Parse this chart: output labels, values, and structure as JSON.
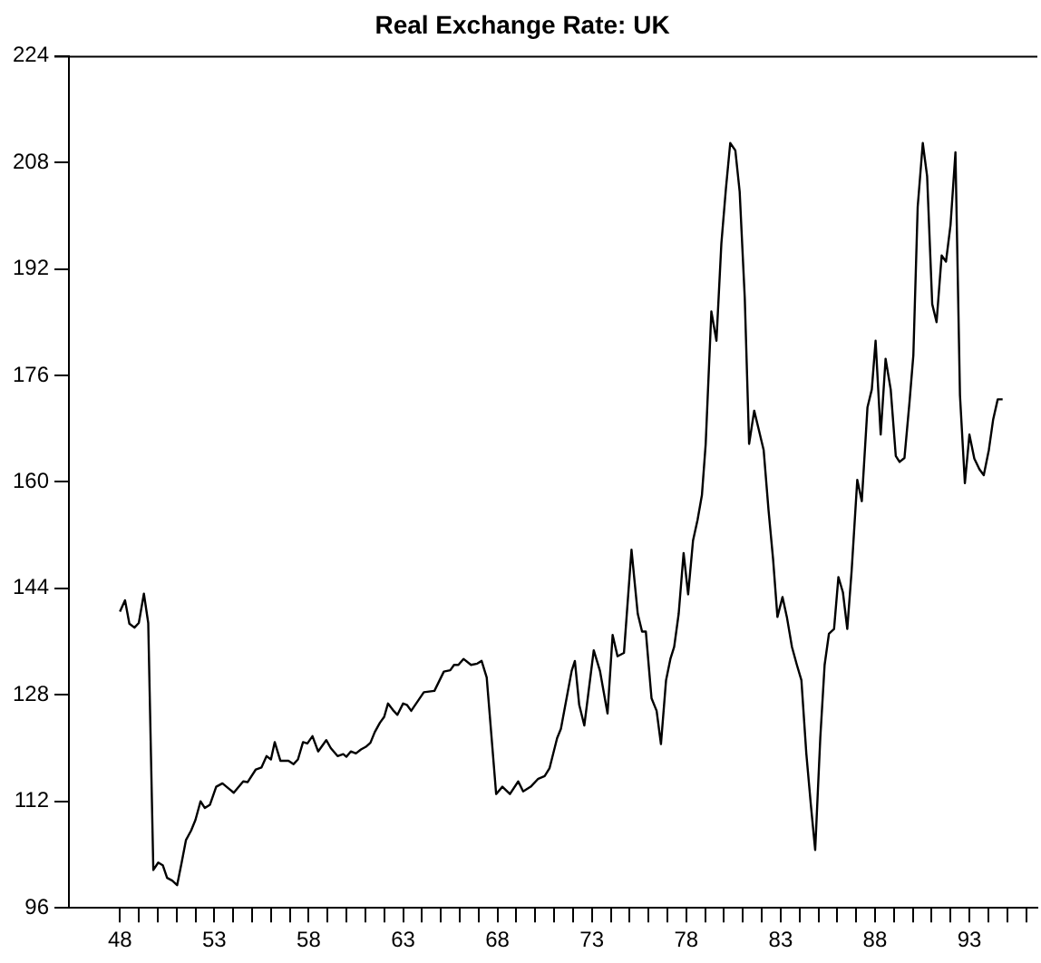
{
  "chart_data": {
    "type": "line",
    "title": "Real Exchange Rate: UK",
    "color": "#000000",
    "marker": "none",
    "grid": false,
    "legend": false,
    "x": [
      48.0,
      48.27,
      48.5,
      48.77,
      49.0,
      49.27,
      49.5,
      49.77,
      50.03,
      50.27,
      50.5,
      50.77,
      51.03,
      51.27,
      51.5,
      51.77,
      52.0,
      52.27,
      52.5,
      52.77,
      53.1,
      53.43,
      54.03,
      54.53,
      54.77,
      55.2,
      55.5,
      55.77,
      56.0,
      56.2,
      56.5,
      56.93,
      57.2,
      57.43,
      57.7,
      57.93,
      58.2,
      58.5,
      58.93,
      59.17,
      59.53,
      59.83,
      60.0,
      60.23,
      60.5,
      60.77,
      61.03,
      61.27,
      61.5,
      61.77,
      62.0,
      62.2,
      62.5,
      62.7,
      63.0,
      63.2,
      63.43,
      64.1,
      64.66,
      65.16,
      65.5,
      65.7,
      65.93,
      66.2,
      66.6,
      66.93,
      67.16,
      67.43,
      67.93,
      68.26,
      68.66,
      69.1,
      69.36,
      69.76,
      70.16,
      70.5,
      70.76,
      71.16,
      71.36,
      71.93,
      72.1,
      72.33,
      72.6,
      73.1,
      73.43,
      73.83,
      74.1,
      74.36,
      74.7,
      75.1,
      75.43,
      75.66,
      75.86,
      76.16,
      76.43,
      76.66,
      76.93,
      77.16,
      77.36,
      77.6,
      77.86,
      78.1,
      78.36,
      78.6,
      78.83,
      79.03,
      79.33,
      79.6,
      79.86,
      80.1,
      80.33,
      80.6,
      80.83,
      81.1,
      81.33,
      81.6,
      81.83,
      82.1,
      82.36,
      82.6,
      82.83,
      83.1,
      83.33,
      83.6,
      83.86,
      84.1,
      84.36,
      84.6,
      84.83,
      85.1,
      85.33,
      85.56,
      85.83,
      86.06,
      86.3,
      86.53,
      86.76,
      87.06,
      87.3,
      87.6,
      87.83,
      88.03,
      88.3,
      88.56,
      88.83,
      89.1,
      89.3,
      89.56,
      89.83,
      90.03,
      90.26,
      90.53,
      90.76,
      91.03,
      91.26,
      91.53,
      91.76,
      92.0,
      92.26,
      92.5,
      92.76,
      93.0,
      93.26,
      93.53,
      93.76,
      94.03,
      94.26,
      94.5,
      94.76
    ],
    "values": [
      140.5,
      142.2,
      138.7,
      138.1,
      138.8,
      143.2,
      138.8,
      101.7,
      102.8,
      102.4,
      100.5,
      100.1,
      99.4,
      102.8,
      106.2,
      107.6,
      109.2,
      112.0,
      111.0,
      111.5,
      114.2,
      114.7,
      113.3,
      115.0,
      114.9,
      116.8,
      117.1,
      118.8,
      118.3,
      120.9,
      118.1,
      118.1,
      117.6,
      118.3,
      120.9,
      120.7,
      121.8,
      119.5,
      121.2,
      120.0,
      118.8,
      119.1,
      118.7,
      119.5,
      119.2,
      119.8,
      120.2,
      120.8,
      122.4,
      123.8,
      124.7,
      126.7,
      125.6,
      125.0,
      126.7,
      126.5,
      125.6,
      128.4,
      128.6,
      131.5,
      131.7,
      132.5,
      132.5,
      133.4,
      132.5,
      132.7,
      133.1,
      130.6,
      113.1,
      114.2,
      113.1,
      115.0,
      113.5,
      114.2,
      115.4,
      115.8,
      117.0,
      121.5,
      122.9,
      131.6,
      133.1,
      126.5,
      123.4,
      134.7,
      131.6,
      125.2,
      137.0,
      133.8,
      134.3,
      149.8,
      140.2,
      137.5,
      137.5,
      127.5,
      125.6,
      120.6,
      130.2,
      133.4,
      135.2,
      140.2,
      149.3,
      143.1,
      151.2,
      154.3,
      158.0,
      165.7,
      185.6,
      181.2,
      195.8,
      204.0,
      210.9,
      209.8,
      203.6,
      187.6,
      165.7,
      170.7,
      168.0,
      164.8,
      155.7,
      148.4,
      139.7,
      142.7,
      139.7,
      135.2,
      132.5,
      130.2,
      119.2,
      111.5,
      104.7,
      121.5,
      132.5,
      137.2,
      137.9,
      145.7,
      143.4,
      137.9,
      146.6,
      160.3,
      157.1,
      171.2,
      173.9,
      181.2,
      167.1,
      178.5,
      173.9,
      163.9,
      163.0,
      163.6,
      172.1,
      179.0,
      201.3,
      210.9,
      205.9,
      186.7,
      184.0,
      194.0,
      193.1,
      198.6,
      209.5,
      173.0,
      159.8,
      167.1,
      163.5,
      161.9,
      161.0,
      164.8,
      169.4,
      172.4,
      172.4
    ],
    "xlim": [
      45.3,
      96.6
    ],
    "xticks": [
      48,
      {
        "value": 49,
        "label": null
      },
      {
        "value": 50,
        "label": null
      },
      {
        "value": 51,
        "label": null
      },
      {
        "value": 52,
        "label": null
      },
      53,
      {
        "value": 54,
        "label": null
      },
      {
        "value": 55,
        "label": null
      },
      {
        "value": 56,
        "label": null
      },
      {
        "value": 57,
        "label": null
      },
      58,
      {
        "value": 59,
        "label": null
      },
      {
        "value": 60,
        "label": null
      },
      {
        "value": 61,
        "label": null
      },
      {
        "value": 62,
        "label": null
      },
      63,
      {
        "value": 64,
        "label": null
      },
      {
        "value": 65,
        "label": null
      },
      {
        "value": 66,
        "label": null
      },
      {
        "value": 67,
        "label": null
      },
      68,
      {
        "value": 69,
        "label": null
      },
      {
        "value": 70,
        "label": null
      },
      {
        "value": 71,
        "label": null
      },
      {
        "value": 72,
        "label": null
      },
      73,
      {
        "value": 74,
        "label": null
      },
      {
        "value": 75,
        "label": null
      },
      {
        "value": 76,
        "label": null
      },
      {
        "value": 77,
        "label": null
      },
      78,
      {
        "value": 79,
        "label": null
      },
      {
        "value": 80,
        "label": null
      },
      {
        "value": 81,
        "label": null
      },
      {
        "value": 82,
        "label": null
      },
      83,
      {
        "value": 84,
        "label": null
      },
      {
        "value": 85,
        "label": null
      },
      {
        "value": 86,
        "label": null
      },
      {
        "value": 87,
        "label": null
      },
      88,
      {
        "value": 89,
        "label": null
      },
      {
        "value": 90,
        "label": null
      },
      {
        "value": 91,
        "label": null
      },
      {
        "value": 92,
        "label": null
      },
      93,
      {
        "value": 94,
        "label": null
      },
      {
        "value": 95,
        "label": null
      },
      {
        "value": 96,
        "label": null
      }
    ],
    "ylim": [
      96,
      224
    ],
    "yticks": [
      96,
      112,
      128,
      144,
      160,
      176,
      192,
      208,
      224
    ]
  }
}
